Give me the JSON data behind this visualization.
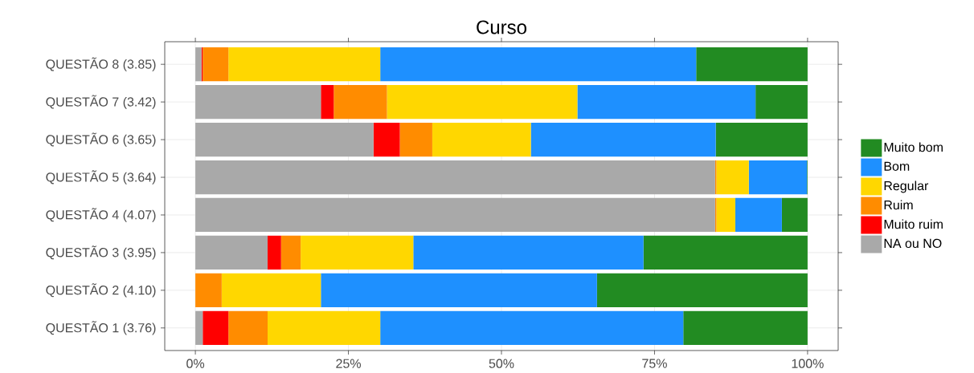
{
  "chart_data": {
    "type": "bar",
    "title": "Curso",
    "orientation": "horizontal",
    "stacked": true,
    "categories": [
      "QUESTÃO 8 (3.85)",
      "QUESTÃO 7 (3.42)",
      "QUESTÃO 6 (3.65)",
      "QUESTÃO 5 (3.64)",
      "QUESTÃO 4 (4.07)",
      "QUESTÃO 3 (3.95)",
      "QUESTÃO 2 (4.10)",
      "QUESTÃO 1 (3.76)"
    ],
    "series": [
      {
        "name": "NA ou NO",
        "color": "#a9a9a9",
        "values": [
          1.0,
          20.5,
          29.1,
          84.9,
          84.9,
          11.8,
          0,
          1.2
        ]
      },
      {
        "name": "Muito ruim",
        "color": "#ff0000",
        "values": [
          0.2,
          2.1,
          4.3,
          0,
          0,
          2.2,
          0,
          4.2
        ]
      },
      {
        "name": "Ruim",
        "color": "#ff8c00",
        "values": [
          4.2,
          8.7,
          5.3,
          0.2,
          0.2,
          3.2,
          4.3,
          6.4
        ]
      },
      {
        "name": "Regular",
        "color": "#ffd700",
        "values": [
          24.8,
          31.1,
          16.1,
          5.3,
          3.1,
          18.4,
          16.2,
          18.4
        ]
      },
      {
        "name": "Bom",
        "color": "#1e90ff",
        "values": [
          51.6,
          29.1,
          30.2,
          9.5,
          7.6,
          37.6,
          45.1,
          49.5
        ]
      },
      {
        "name": "Muito bom",
        "color": "#228b22",
        "values": [
          18.2,
          8.5,
          15.0,
          0.1,
          4.2,
          26.8,
          34.4,
          20.3
        ]
      }
    ],
    "xlim": [
      -5,
      105
    ],
    "xticks": [
      {
        "value": 0,
        "label": "0%"
      },
      {
        "value": 25,
        "label": "25%"
      },
      {
        "value": 50,
        "label": "50%"
      },
      {
        "value": 75,
        "label": "75%"
      },
      {
        "value": 100,
        "label": "100%"
      }
    ],
    "grid": true,
    "legend": "right"
  }
}
